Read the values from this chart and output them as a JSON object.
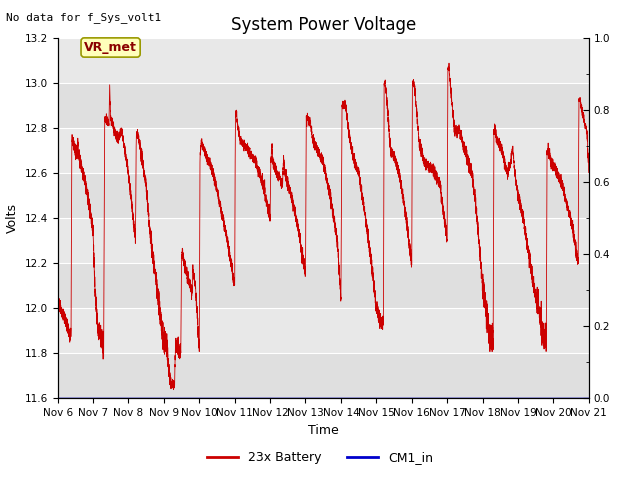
{
  "title": "System Power Voltage",
  "ylabel_left": "Volts",
  "xlabel": "Time",
  "ylim_left": [
    11.6,
    13.2
  ],
  "ylim_right": [
    0.0,
    1.0
  ],
  "yticks_left": [
    11.6,
    11.8,
    12.0,
    12.2,
    12.4,
    12.6,
    12.8,
    13.0,
    13.2
  ],
  "yticks_right": [
    0.0,
    0.2,
    0.4,
    0.6,
    0.8,
    1.0
  ],
  "no_data_text": "No data for f_Sys_volt1",
  "annotation_text": "VR_met",
  "legend_labels": [
    "23x Battery",
    "CM1_in"
  ],
  "legend_colors": [
    "#cc0000",
    "#0000cc"
  ],
  "xticklabels": [
    "Nov 6",
    "Nov 7",
    "Nov 8",
    "Nov 9",
    "Nov 10",
    "Nov 11",
    "Nov 12",
    "Nov 13",
    "Nov 14",
    "Nov 15",
    "Nov 16",
    "Nov 17",
    "Nov 18",
    "Nov 19",
    "Nov 20",
    "Nov 21"
  ],
  "plot_bg": "#e8e8e8",
  "fig_bg": "#ffffff",
  "title_fontsize": 12,
  "axis_fontsize": 9,
  "tick_fontsize": 7.5,
  "no_data_fontsize": 8
}
